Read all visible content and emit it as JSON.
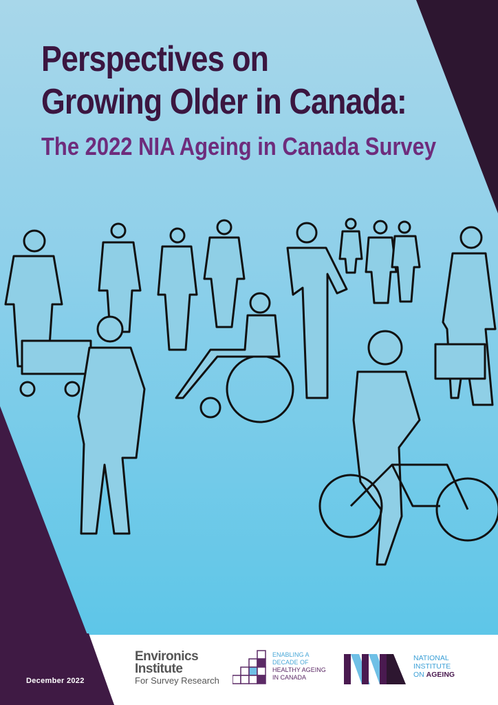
{
  "title": {
    "line1": "Perspectives on",
    "line2": "Growing Older in Canada:",
    "subtitle": "The 2022 NIA Ageing in Canada Survey"
  },
  "footer": {
    "date": "December 2022",
    "environics": {
      "name1": "Environics",
      "name2": "Institute",
      "tagline": "For Survey Research"
    },
    "decade": {
      "line1": "ENABLING A",
      "line2": "DECADE OF",
      "line3": "HEALTHY AGEING",
      "line4": "IN CANADA"
    },
    "nia": {
      "mark": "NIA",
      "line1": "NATIONAL",
      "line2": "INSTITUTE",
      "line3": "ON",
      "line4": "AGEING"
    }
  },
  "colors": {
    "dark_purple": "#2d1630",
    "title": "#3b1640",
    "subtitle": "#6e2c7c",
    "sky": "#5ec6e8"
  }
}
